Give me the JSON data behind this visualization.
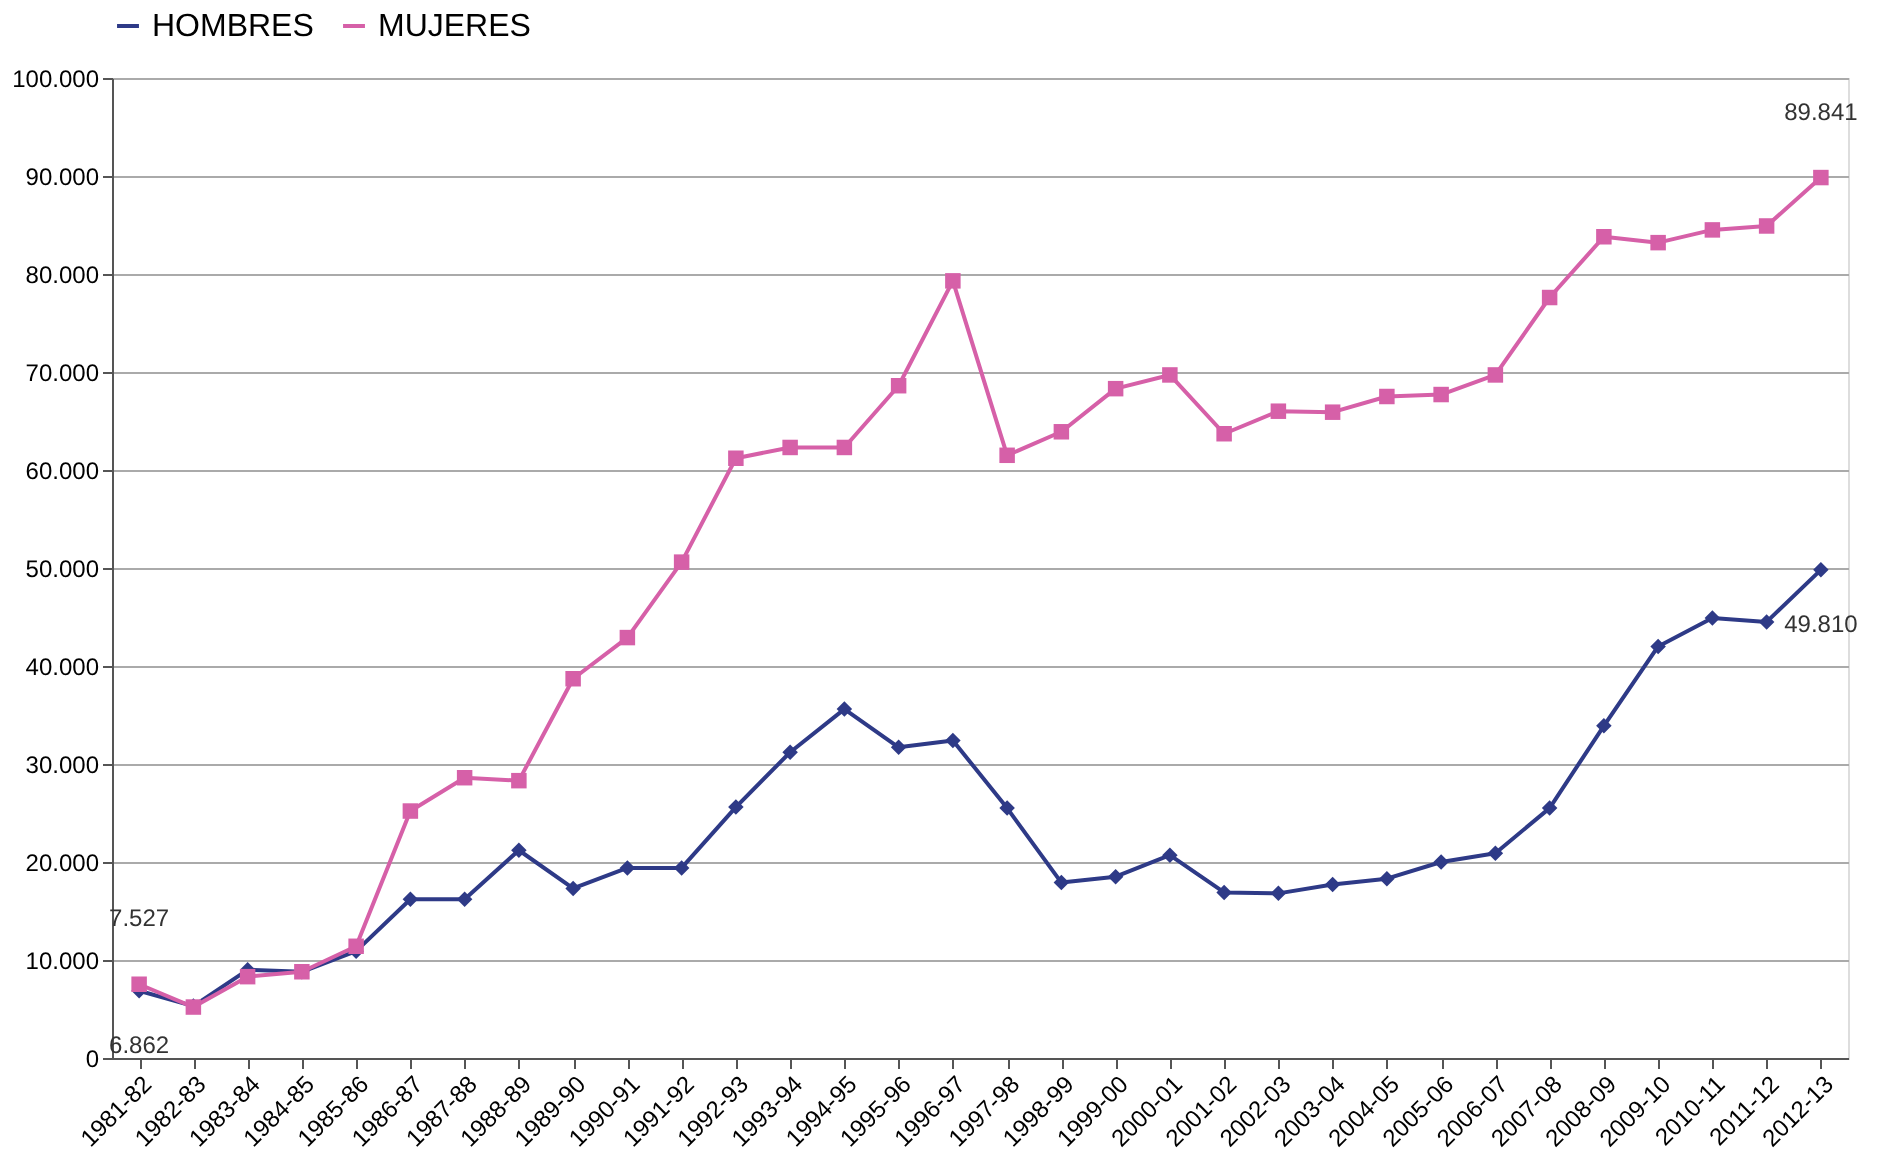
{
  "chart_data": {
    "type": "line",
    "categories": [
      "1981-82",
      "1982-83",
      "1983-84",
      "1984-85",
      "1985-86",
      "1986-87",
      "1987-88",
      "1988-89",
      "1989-90",
      "1990-91",
      "1991-92",
      "1992-93",
      "1993-94",
      "1994-95",
      "1995-96",
      "1996-97",
      "1997-98",
      "1998-99",
      "1999-00",
      "2000-01",
      "2001-02",
      "2002-03",
      "2003-04",
      "2004-05",
      "2005-06",
      "2006-07",
      "2007-08",
      "2008-09",
      "2009-10",
      "2010-11",
      "2011-12",
      "2012-13"
    ],
    "series": [
      {
        "name": "HOMBRES",
        "color": "#2e3a87",
        "marker": "diamond",
        "values": [
          6862,
          5300,
          9000,
          8800,
          10900,
          16200,
          16200,
          21200,
          17300,
          19400,
          19400,
          25600,
          31200,
          35600,
          31700,
          32400,
          25500,
          17900,
          18500,
          20700,
          16900,
          16800,
          17700,
          18300,
          20000,
          20900,
          25500,
          33900,
          42000,
          44900,
          44500,
          49810
        ]
      },
      {
        "name": "MUJERES",
        "color": "#d660a8",
        "marker": "square",
        "values": [
          7527,
          5200,
          8300,
          8800,
          11400,
          25200,
          28600,
          28300,
          38700,
          42900,
          50600,
          61200,
          62300,
          62300,
          68600,
          79300,
          61500,
          63900,
          68300,
          69700,
          63700,
          66000,
          65900,
          67500,
          67700,
          69700,
          77600,
          83800,
          83200,
          84500,
          84900,
          89841
        ]
      }
    ],
    "ylim": [
      0,
      100000
    ],
    "yticks": [
      0,
      {
        "value": 10000,
        "label": "10.000"
      },
      {
        "value": 20000,
        "label": "20.000"
      },
      {
        "value": 30000,
        "label": "30.000"
      },
      {
        "value": 40000,
        "label": "40.000"
      },
      {
        "value": 50000,
        "label": "50.000"
      },
      {
        "value": 60000,
        "label": "60.000"
      },
      {
        "value": 70000,
        "label": "70.000"
      },
      {
        "value": 80000,
        "label": "80.000"
      },
      {
        "value": 90000,
        "label": "90.000"
      },
      {
        "value": 100000,
        "label": "100.000"
      }
    ],
    "annotations": [
      {
        "text": "7.527",
        "x": "1981-82",
        "y": 7527
      },
      {
        "text": "6.862",
        "x": "1981-82",
        "y": 6862
      },
      {
        "text": "89.841",
        "x": "2012-13",
        "y": 89841
      },
      {
        "text": "49.810",
        "x": "2012-13",
        "y": 49810
      }
    ],
    "grid": "y",
    "legend": "top",
    "line_style": "solid"
  }
}
